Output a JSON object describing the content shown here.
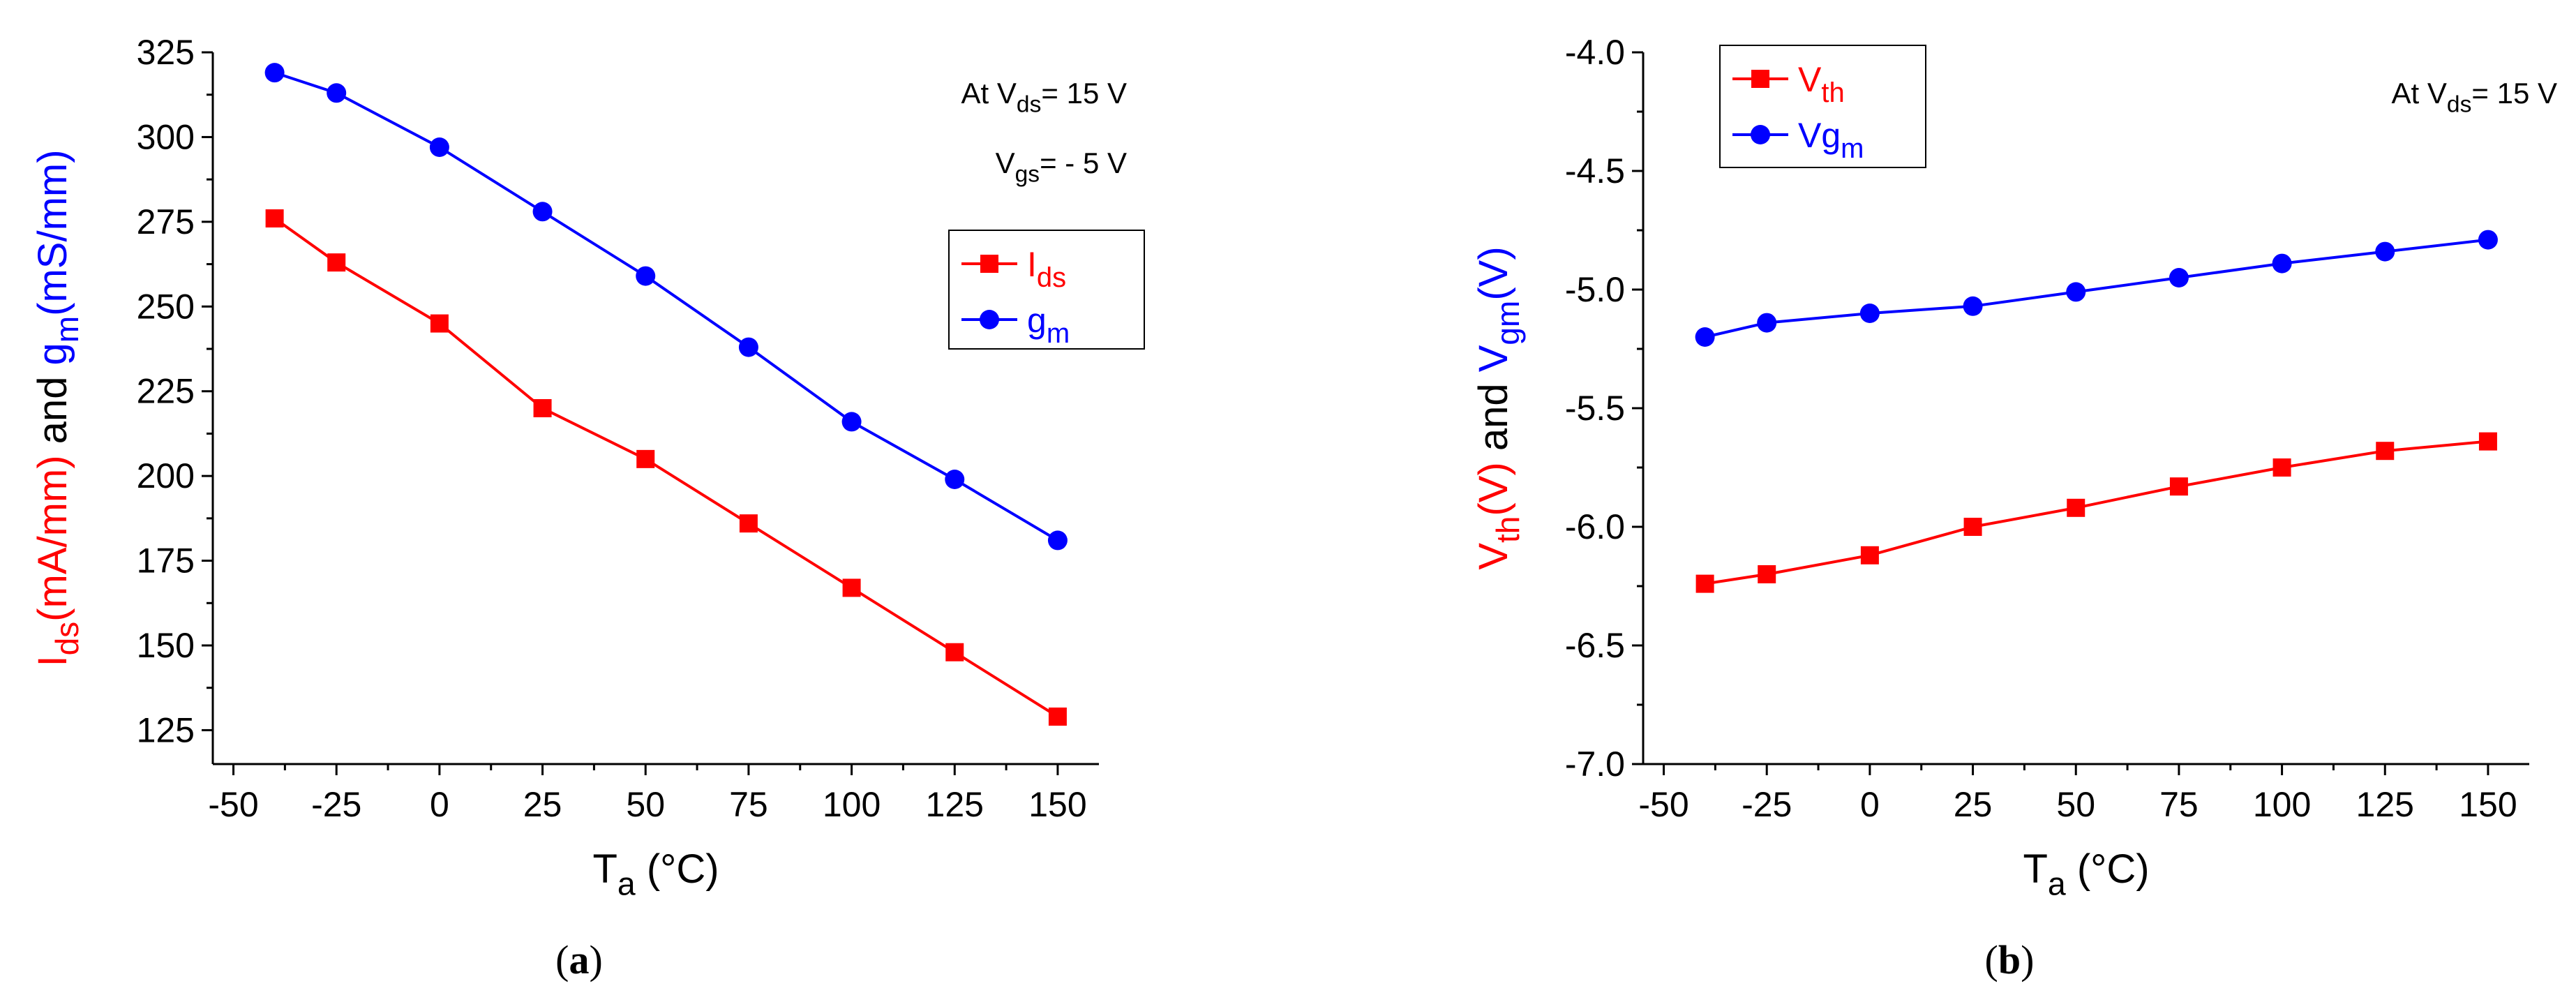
{
  "chart_data": [
    {
      "type": "line",
      "panel_label": "(a)",
      "x": [
        -40,
        -25,
        0,
        25,
        50,
        75,
        100,
        125,
        150
      ],
      "xlim": [
        -55,
        160
      ],
      "ylim": [
        115,
        325
      ],
      "xticks": [
        "-50",
        "-25",
        "0",
        "25",
        "50",
        "75",
        "100",
        "125",
        "150"
      ],
      "yticks": [
        "125",
        "150",
        "175",
        "200",
        "225",
        "250",
        "275",
        "300",
        "325"
      ],
      "xlabel": {
        "main": "T",
        "sub": "a",
        "rest": " (°C)"
      },
      "ylabel": {
        "part1_main": "I",
        "part1_sub": "ds",
        "part1_rest": "(mA/mm)",
        "joiner": " and ",
        "part2_main": "g",
        "part2_sub": "m",
        "part2_rest": "(mS/mm)"
      },
      "annotations": [
        {
          "pre": "At V",
          "sub": "ds",
          "post": "= 15 V"
        },
        {
          "pre": "V",
          "sub": "gs",
          "post": "= - 5 V"
        }
      ],
      "series": [
        {
          "name_main": "I",
          "name_sub": "ds",
          "color": "#ff0000",
          "marker": "square",
          "values": [
            276,
            263,
            245,
            220,
            205,
            186,
            167,
            148,
            129
          ]
        },
        {
          "name_main": "g",
          "name_sub": "m",
          "color": "#0000ff",
          "marker": "circle",
          "values": [
            319,
            313,
            297,
            278,
            259,
            238,
            216,
            199,
            181
          ]
        }
      ],
      "grid": false,
      "legend_position": "right"
    },
    {
      "type": "line",
      "panel_label": "(b)",
      "x": [
        -40,
        -25,
        0,
        25,
        50,
        75,
        100,
        125,
        150
      ],
      "xlim": [
        -55,
        160
      ],
      "ylim": [
        -7.0,
        -4.0
      ],
      "xticks": [
        "-50",
        "-25",
        "0",
        "25",
        "50",
        "75",
        "100",
        "125",
        "150"
      ],
      "yticks": [
        "-7.0",
        "-6.5",
        "-6.0",
        "-5.5",
        "-5.0",
        "-4.5",
        "-4.0"
      ],
      "xlabel": {
        "main": "T",
        "sub": "a",
        "rest": " (°C)"
      },
      "ylabel": {
        "part1_main": "V",
        "part1_sub": "th",
        "part1_rest": "(V)",
        "joiner": " and ",
        "part2_main": "V",
        "part2_sub": "gm",
        "part2_rest": "(V)"
      },
      "annotations": [
        {
          "pre": "At V",
          "sub": "ds",
          "post": "= 15 V"
        }
      ],
      "series": [
        {
          "name_main": "V",
          "name_sub": "th",
          "color": "#ff0000",
          "marker": "square",
          "values": [
            -6.24,
            -6.2,
            -6.12,
            -6.0,
            -5.92,
            -5.83,
            -5.75,
            -5.68,
            -5.64
          ]
        },
        {
          "name_main": "Vg",
          "name_sub": "m",
          "color": "#0000ff",
          "marker": "circle",
          "values": [
            -5.2,
            -5.14,
            -5.1,
            -5.07,
            -5.01,
            -4.95,
            -4.89,
            -4.84,
            -4.79
          ]
        }
      ],
      "grid": false,
      "legend_position": "top-left"
    }
  ]
}
